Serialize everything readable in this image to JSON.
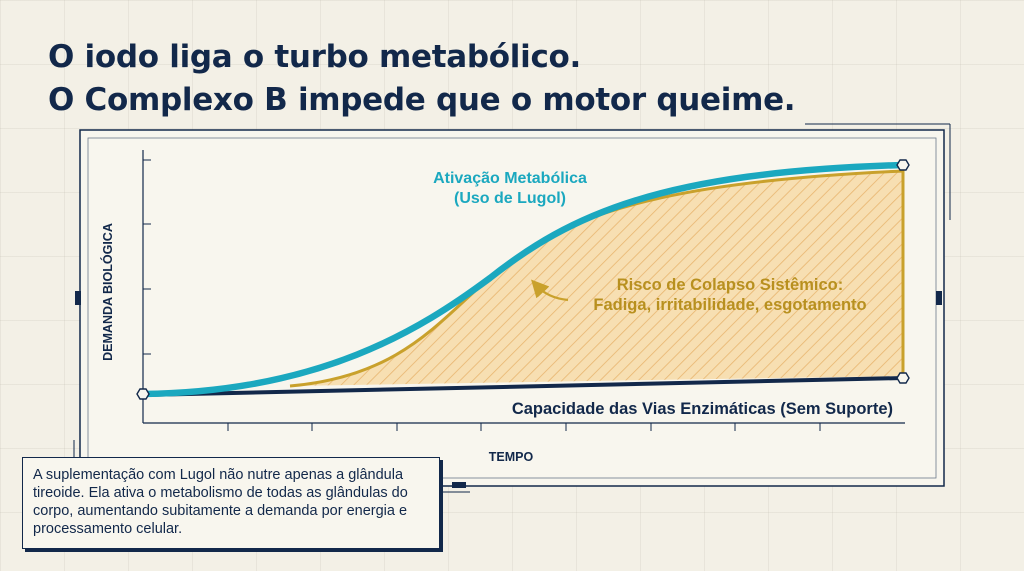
{
  "headline": {
    "line1": "O iodo liga o turbo metabólico.",
    "line2": "O Complexo B impede que o motor queime."
  },
  "axes": {
    "ylabel": "DEMANDA BIOLÓGICA",
    "xlabel": "TEMPO"
  },
  "curves": {
    "activation": {
      "label_line1": "Ativação Metabólica",
      "label_line2": "(Uso de Lugol)",
      "color": "#1ba8bf"
    },
    "capacity": {
      "label": "Capacidade das Vias Enzimáticas (Sem Suporte)",
      "color": "#12284a"
    }
  },
  "risk_zone": {
    "label_line1": "Risco de Colapso Sistêmico:",
    "label_line2": "Fadiga, irritabilidade, esgotamento",
    "color": "#c9a12c"
  },
  "note": {
    "text": "A suplementação com Lugol não nutre apenas a glândula tireoide. Ela ativa o metabolismo de todas as glândulas do corpo, aumentando subitamente a demanda por energia e processamento celular."
  },
  "colors": {
    "navy": "#12284a",
    "teal": "#1ba8bf",
    "gold": "#c9a12c",
    "background": "#f3f0e6"
  }
}
